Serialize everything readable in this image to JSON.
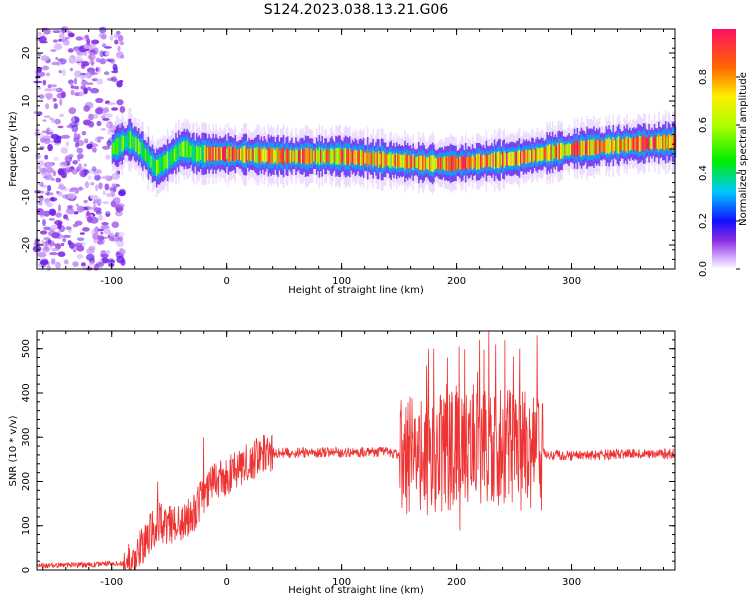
{
  "figure": {
    "title": "S124.2023.038.13.21.G06"
  },
  "chart_data": [
    {
      "type": "heatmap",
      "xlabel": "Height of straight line (km)",
      "ylabel": "Frequency (Hz)",
      "xlim": [
        -165,
        390
      ],
      "ylim": [
        -25,
        25
      ],
      "xticks": [
        "-100",
        "0",
        "100",
        "200",
        "300"
      ],
      "yticks": [
        "-20",
        "-10",
        "0",
        "10",
        "20"
      ],
      "colorbar": {
        "label": "Normalized spectral amplitude",
        "range": [
          0,
          1
        ],
        "ticks": [
          "0.0",
          "0.2",
          "0.4",
          "0.6",
          "0.8"
        ],
        "colormap": "rainbow"
      },
      "ridge_frequency": {
        "height_km": [
          -100,
          -85,
          -75,
          -62,
          -50,
          -40,
          -35,
          -28,
          -20,
          0,
          50,
          100,
          125,
          150,
          175,
          200,
          225,
          250,
          275,
          300,
          325,
          350,
          390
        ],
        "frequency_hz": [
          0,
          2,
          0,
          -4,
          -2,
          0,
          0,
          -1,
          -1,
          -1,
          -1.5,
          -1.5,
          -2,
          -2.5,
          -3,
          -3,
          -2.5,
          -2,
          -1,
          0,
          0.5,
          1,
          1.5
        ]
      },
      "noise_region_km": [
        -165,
        -100
      ]
    },
    {
      "type": "line",
      "xlabel": "Height of straight line (km)",
      "ylabel": "SNR (10 * v/v)",
      "xlim": [
        -165,
        390
      ],
      "ylim": [
        0,
        540
      ],
      "xticks": [
        "-100",
        "0",
        "100",
        "200",
        "300"
      ],
      "yticks": [
        "0",
        "100",
        "200",
        "300",
        "400",
        "500"
      ],
      "color": "#ee3333",
      "series": [
        {
          "x": [
            -165,
            -120,
            -90,
            -80,
            -70,
            -60,
            -50,
            -40,
            -30,
            -20,
            -10,
            0,
            10,
            20,
            30,
            40,
            60,
            100,
            140,
            150,
            170,
            180,
            200,
            220,
            230,
            240,
            260,
            270,
            280,
            300,
            350,
            390
          ],
          "y": [
            10,
            12,
            15,
            30,
            70,
            110,
            100,
            110,
            120,
            170,
            200,
            210,
            230,
            245,
            260,
            265,
            265,
            265,
            268,
            260,
            265,
            260,
            280,
            285,
            285,
            280,
            270,
            265,
            260,
            258,
            262,
            262
          ]
        }
      ],
      "peaks": {
        "x": [
          -20,
          -60,
          5,
          180,
          192,
          202,
          220,
          228,
          242,
          255,
          270
        ],
        "y": [
          300,
          200,
          250,
          500,
          480,
          505,
          520,
          540,
          520,
          500,
          530
        ]
      }
    }
  ]
}
